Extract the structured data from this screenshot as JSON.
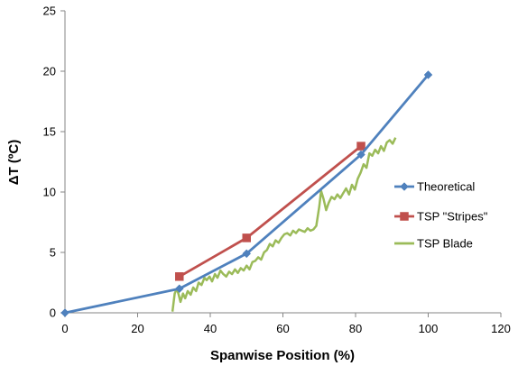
{
  "chart_data": {
    "type": "line",
    "title": "",
    "xlabel": "Spanwise Position (%)",
    "ylabel": "ΔT (ºC)",
    "xlim": [
      0,
      120
    ],
    "ylim": [
      0,
      25
    ],
    "xticks": [
      0,
      20,
      40,
      60,
      80,
      100,
      120
    ],
    "yticks": [
      0,
      5,
      10,
      15,
      20,
      25
    ],
    "grid": false,
    "legend_position": "right",
    "series": [
      {
        "name": "Theoretical",
        "color": "#4F81BD",
        "marker": "diamond",
        "x": [
          0,
          31.5,
          50,
          81.5,
          100
        ],
        "y": [
          0,
          2.0,
          4.9,
          13.1,
          19.7
        ]
      },
      {
        "name": "TSP \"Stripes\"",
        "color": "#C0504D",
        "marker": "square",
        "x": [
          31.5,
          50,
          81.5
        ],
        "y": [
          3.0,
          6.2,
          13.8
        ]
      },
      {
        "name": "TSP Blade",
        "color": "#9BBB59",
        "marker": "none",
        "x": [
          29.6,
          30.2,
          30.8,
          31.3,
          31.8,
          32.5,
          33.1,
          33.8,
          34.6,
          35.3,
          36.1,
          36.8,
          37.6,
          38.4,
          39.0,
          39.8,
          40.5,
          41.3,
          42.0,
          42.8,
          43.6,
          44.4,
          45.2,
          46.0,
          46.8,
          47.6,
          48.4,
          49.2,
          50.0,
          50.8,
          51.6,
          52.4,
          53.2,
          54.0,
          54.8,
          55.6,
          56.4,
          57.2,
          58.0,
          58.8,
          59.6,
          60.4,
          61.2,
          62.0,
          62.8,
          63.6,
          64.4,
          65.2,
          66.0,
          66.8,
          67.6,
          68.4,
          69.2,
          70.0,
          70.5,
          71.2,
          71.9,
          72.6,
          73.4,
          74.2,
          75.0,
          75.8,
          76.6,
          77.4,
          78.2,
          79.0,
          79.8,
          80.6,
          81.4,
          82.2,
          83.0,
          83.8,
          84.6,
          85.4,
          86.2,
          87.0,
          87.8,
          88.6,
          89.4,
          90.2,
          91.0
        ],
        "y": [
          0.1,
          1.6,
          2.0,
          1.5,
          0.9,
          1.6,
          1.2,
          1.8,
          1.5,
          2.1,
          1.8,
          2.5,
          2.3,
          2.9,
          2.7,
          3.0,
          2.6,
          3.2,
          2.9,
          3.5,
          3.2,
          3.0,
          3.4,
          3.2,
          3.6,
          3.3,
          3.7,
          3.5,
          3.9,
          3.6,
          4.2,
          4.3,
          4.6,
          4.4,
          5.0,
          5.2,
          5.7,
          5.5,
          6.0,
          5.8,
          6.2,
          6.5,
          6.6,
          6.4,
          6.8,
          6.6,
          6.9,
          6.8,
          6.7,
          7.0,
          6.8,
          6.9,
          7.2,
          8.8,
          10.1,
          9.4,
          8.5,
          9.1,
          9.6,
          9.4,
          9.8,
          9.5,
          9.9,
          10.3,
          9.8,
          10.6,
          10.2,
          11.1,
          11.6,
          12.3,
          12.0,
          13.2,
          13.0,
          13.5,
          13.2,
          13.8,
          13.4,
          14.1,
          14.3,
          14.0,
          14.5
        ]
      }
    ]
  }
}
